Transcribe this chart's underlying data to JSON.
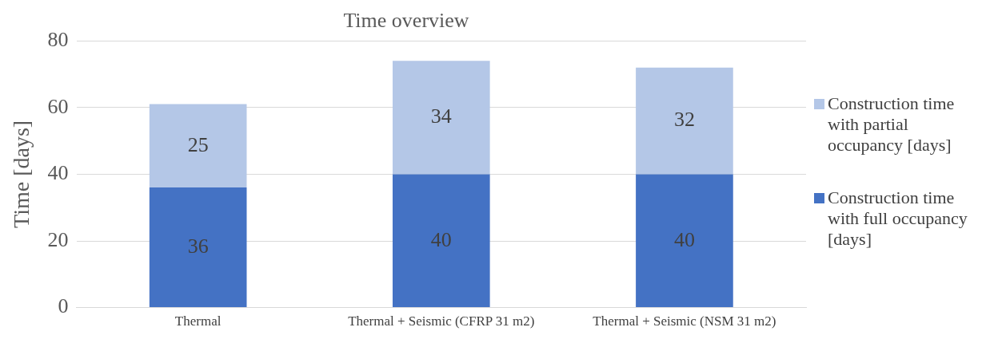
{
  "chart_data": {
    "type": "bar",
    "title": "Time overview",
    "ylabel": "Time [days]",
    "stacked": true,
    "data_labels": true,
    "grid": "y",
    "legend": "right",
    "ylim": [
      0,
      80
    ],
    "yticks": [
      0,
      20,
      40,
      60,
      80
    ],
    "categories": [
      "Thermal",
      "Thermal + Seismic (CFRP 31 m2)",
      "Thermal + Seismic (NSM 31 m2)"
    ],
    "series": [
      {
        "name": "Construction time with full occupancy [days]",
        "color": "#4472c4",
        "values": [
          36,
          40,
          40
        ]
      },
      {
        "name": "Construction time with partial occupancy [days]",
        "color": "#b4c7e7",
        "values": [
          25,
          34,
          32
        ]
      }
    ]
  }
}
